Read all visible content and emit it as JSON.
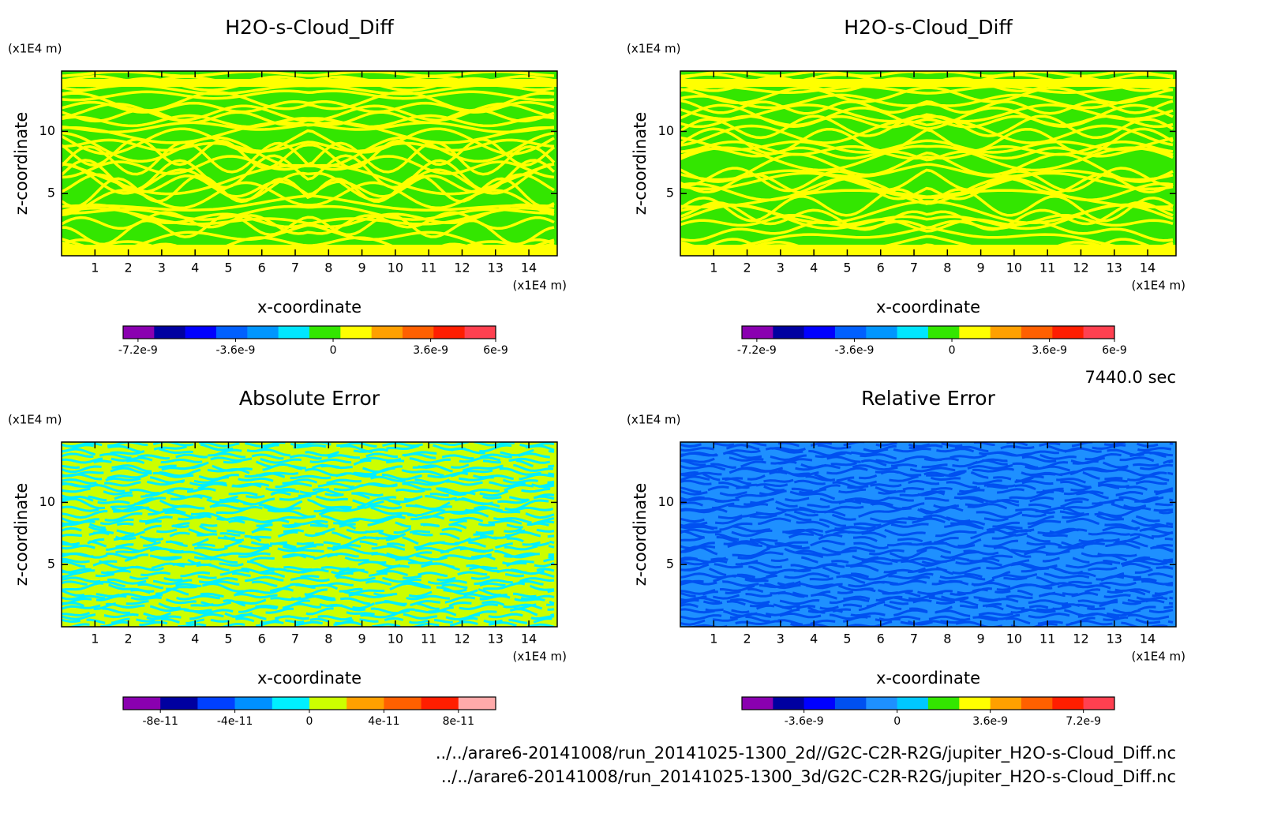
{
  "chart_data": [
    {
      "type": "contour",
      "title": "H2O-s-Cloud_Diff",
      "xlabel": "x-coordinate",
      "ylabel": "z-coordinate",
      "x_unit": "(x1E4 m)",
      "y_unit": "(x1E4 m)",
      "xlim": [
        0,
        14.85
      ],
      "ylim": [
        0,
        14.85
      ],
      "xticks": [
        1,
        2,
        3,
        4,
        5,
        6,
        7,
        8,
        9,
        10,
        11,
        12,
        13,
        14
      ],
      "yticks": [
        5,
        10
      ],
      "colorbar": {
        "clim": [
          -7.75e-09,
          6e-09
        ],
        "colors": [
          "#8a00b0",
          "#0000a0",
          "#0000ff",
          "#0060ff",
          "#0096ff",
          "#00e6ff",
          "#33e600",
          "#ffff00",
          "#ffa000",
          "#ff6000",
          "#ff1e00",
          "#ff4050"
        ],
        "ticks": [
          {
            "value": -7.2e-09,
            "label": "-7.2e-9"
          },
          {
            "value": -3.6e-09,
            "label": "-3.6e-9"
          },
          0,
          {
            "value": 3.6e-09,
            "label": "3.6e-9"
          },
          {
            "value": 6e-09,
            "label": "6e-9"
          }
        ]
      }
    },
    {
      "type": "contour",
      "title": "H2O-s-Cloud_Diff",
      "xlabel": "x-coordinate",
      "ylabel": "z-coordinate",
      "x_unit": "(x1E4 m)",
      "y_unit": "(x1E4 m)",
      "xlim": [
        0,
        14.85
      ],
      "ylim": [
        0,
        14.85
      ],
      "xticks": [
        1,
        2,
        3,
        4,
        5,
        6,
        7,
        8,
        9,
        10,
        11,
        12,
        13,
        14
      ],
      "yticks": [
        5,
        10
      ],
      "colorbar": {
        "clim": [
          -7.75e-09,
          6e-09
        ],
        "colors": [
          "#8a00b0",
          "#0000a0",
          "#0000ff",
          "#0060ff",
          "#0096ff",
          "#00e6ff",
          "#33e600",
          "#ffff00",
          "#ffa000",
          "#ff6000",
          "#ff1e00",
          "#ff4050"
        ],
        "ticks": [
          {
            "value": -7.2e-09,
            "label": "-7.2e-9"
          },
          {
            "value": -3.6e-09,
            "label": "-3.6e-9"
          },
          0,
          {
            "value": 3.6e-09,
            "label": "3.6e-9"
          },
          {
            "value": 6e-09,
            "label": "6e-9"
          }
        ]
      }
    },
    {
      "type": "contour",
      "title": "Absolute Error",
      "xlabel": "x-coordinate",
      "ylabel": "z-coordinate",
      "x_unit": "(x1E4 m)",
      "y_unit": "(x1E4 m)",
      "xlim": [
        0,
        14.85
      ],
      "ylim": [
        0,
        14.85
      ],
      "xticks": [
        1,
        2,
        3,
        4,
        5,
        6,
        7,
        8,
        9,
        10,
        11,
        12,
        13,
        14
      ],
      "yticks": [
        5,
        10
      ],
      "colorbar": {
        "clim": [
          -1e-10,
          1e-10
        ],
        "colors": [
          "#8a00b0",
          "#0000a0",
          "#0040ff",
          "#0090ff",
          "#00f0ff",
          "#ccff00",
          "#ffa000",
          "#ff6000",
          "#ff1e00",
          "#ffaaaa"
        ],
        "ticks": [
          {
            "value": -8e-11,
            "label": "-8e-11"
          },
          {
            "value": -4e-11,
            "label": "-4e-11"
          },
          0,
          {
            "value": 4e-11,
            "label": "4e-11"
          },
          {
            "value": 8e-11,
            "label": "8e-11"
          }
        ]
      }
    },
    {
      "type": "contour",
      "title": "Relative Error",
      "xlabel": "x-coordinate",
      "ylabel": "z-coordinate",
      "x_unit": "(x1E4 m)",
      "y_unit": "(x1E4 m)",
      "xlim": [
        0,
        14.85
      ],
      "ylim": [
        0,
        14.85
      ],
      "xticks": [
        1,
        2,
        3,
        4,
        5,
        6,
        7,
        8,
        9,
        10,
        11,
        12,
        13,
        14
      ],
      "yticks": [
        5,
        10
      ],
      "colorbar": {
        "clim": [
          -6e-09,
          8.4e-09
        ],
        "colors": [
          "#8a00b0",
          "#0000a0",
          "#0000ff",
          "#0050f0",
          "#1e90ff",
          "#00c8ff",
          "#33e600",
          "#ffff00",
          "#ffa000",
          "#ff6000",
          "#ff1e00",
          "#ff4050"
        ],
        "ticks": [
          {
            "value": -3.6e-09,
            "label": "-3.6e-9"
          },
          0,
          {
            "value": 3.6e-09,
            "label": "3.6e-9"
          },
          {
            "value": 7.2e-09,
            "label": "7.2e-9"
          }
        ]
      }
    }
  ],
  "annotations": {
    "time": "7440.0 sec",
    "files": [
      "../../arare6-20141008/run_20141025-1300_2d//G2C-C2R-R2G/jupiter_H2O-s-Cloud_Diff.nc",
      "../../arare6-20141008/run_20141025-1300_3d/G2C-C2R-R2G/jupiter_H2O-s-Cloud_Diff.nc"
    ]
  }
}
